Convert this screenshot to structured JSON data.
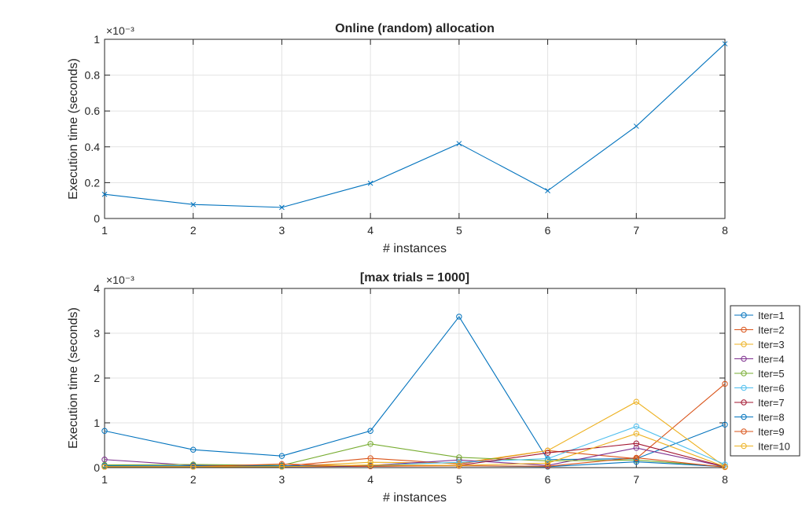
{
  "chart_data": [
    {
      "type": "line",
      "title": "Online (random) allocation",
      "xlabel": "# instances",
      "ylabel": "Execution time (seconds)",
      "exponent_label": "×10⁻³",
      "xlim": [
        1,
        8
      ],
      "ylim": [
        0,
        1
      ],
      "grid": true,
      "marker": "x",
      "x": [
        1,
        2,
        3,
        4,
        5,
        6,
        7,
        8
      ],
      "x_ticks": [
        "1",
        "2",
        "3",
        "4",
        "5",
        "6",
        "7",
        "8"
      ],
      "y_ticks": [
        0,
        0.2,
        0.4,
        0.6,
        0.8,
        1
      ],
      "y_tick_labels": [
        "0",
        "0.2",
        "0.4",
        "0.6",
        "0.8",
        "1"
      ],
      "series": [
        {
          "color": "#0072BD",
          "values": [
            0.135,
            0.078,
            0.062,
            0.197,
            0.418,
            0.155,
            0.515,
            0.975
          ]
        }
      ]
    },
    {
      "type": "line",
      "title": "[max trials = 1000]",
      "xlabel": "# instances",
      "ylabel": "Execution time (seconds)",
      "exponent_label": "×10⁻³",
      "xlim": [
        1,
        8
      ],
      "ylim": [
        0,
        4
      ],
      "grid": true,
      "marker": "o",
      "legend": "right",
      "x": [
        1,
        2,
        3,
        4,
        5,
        6,
        7,
        8
      ],
      "x_ticks": [
        "1",
        "2",
        "3",
        "4",
        "5",
        "6",
        "7",
        "8"
      ],
      "y_ticks": [
        0,
        1,
        2,
        3,
        4
      ],
      "y_tick_labels": [
        "0",
        "1",
        "2",
        "3",
        "4"
      ],
      "series": [
        {
          "name": "Iter=1",
          "color": "#0072BD",
          "values": [
            0.82,
            0.4,
            0.26,
            0.82,
            3.37,
            0.18,
            0.2,
            0.96
          ]
        },
        {
          "name": "Iter=2",
          "color": "#D95319",
          "values": [
            0.03,
            0.03,
            0.03,
            0.21,
            0.08,
            0.38,
            0.2,
            1.87
          ]
        },
        {
          "name": "Iter=3",
          "color": "#EDB120",
          "values": [
            0.02,
            0.02,
            0.02,
            0.12,
            0.1,
            0.38,
            1.47,
            0.02
          ]
        },
        {
          "name": "Iter=4",
          "color": "#7E2F8E",
          "values": [
            0.18,
            0.05,
            0.04,
            0.05,
            0.17,
            0.05,
            0.44,
            0.02
          ]
        },
        {
          "name": "Iter=5",
          "color": "#77AC30",
          "values": [
            0.06,
            0.07,
            0.05,
            0.53,
            0.23,
            0.15,
            0.17,
            0.02
          ]
        },
        {
          "name": "Iter=6",
          "color": "#4DBEEE",
          "values": [
            0.04,
            0.03,
            0.03,
            0.05,
            0.12,
            0.2,
            0.92,
            0.07
          ]
        },
        {
          "name": "Iter=7",
          "color": "#A2142F",
          "values": [
            0.02,
            0.02,
            0.02,
            0.03,
            0.05,
            0.33,
            0.54,
            0.02
          ]
        },
        {
          "name": "Iter=8",
          "color": "#0072BD",
          "values": [
            0.04,
            0.04,
            0.04,
            0.04,
            0.04,
            0.02,
            0.13,
            0.02
          ]
        },
        {
          "name": "Iter=9",
          "color": "#D95319",
          "values": [
            0.02,
            0.02,
            0.08,
            0.03,
            0.04,
            0.03,
            0.22,
            0.01
          ]
        },
        {
          "name": "Iter=10",
          "color": "#EDB120",
          "values": [
            0.02,
            0.02,
            0.02,
            0.06,
            0.05,
            0.1,
            0.76,
            0.02
          ]
        }
      ]
    }
  ]
}
